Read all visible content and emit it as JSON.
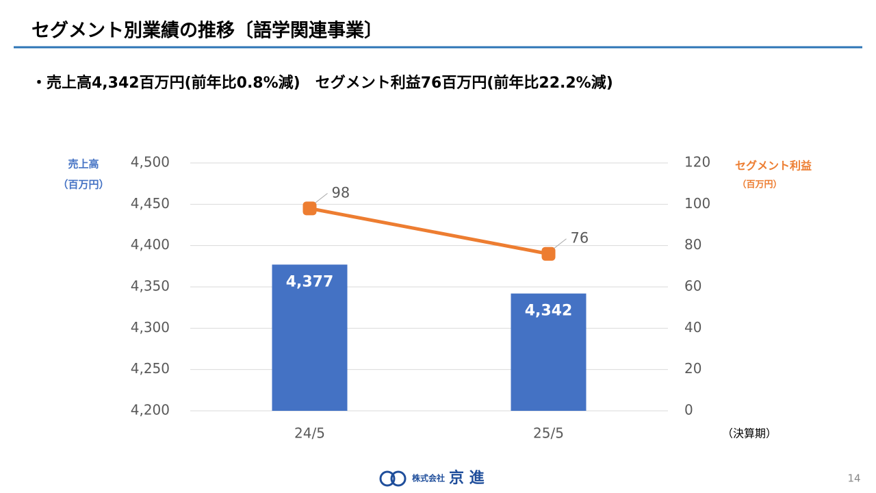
{
  "header": {
    "title": "セグメント別業績の推移〔語学関連事業〕",
    "subtitle": "・売上高4,342百万円(前年比0.8%減)　セグメント利益76百万円(前年比22.2%減)"
  },
  "chart_data": {
    "type": "bar",
    "categories": [
      "24/5",
      "25/5"
    ],
    "series": [
      {
        "name": "売上高",
        "type": "bar",
        "color": "#4472c4",
        "values": [
          4377,
          4342
        ],
        "value_labels": [
          "4,377",
          "4,342"
        ]
      },
      {
        "name": "セグメント利益",
        "type": "line",
        "axis": "y2",
        "color": "#ed7d31",
        "values": [
          98,
          76
        ]
      }
    ],
    "y_unit": "（百万円）",
    "y2_unit": "（百万円）",
    "x_label": "（決算期）",
    "ylim": [
      4200,
      4500
    ],
    "yticks": [
      {
        "value": 4200,
        "label": "4,200"
      },
      {
        "value": 4250,
        "label": "4,250"
      },
      {
        "value": 4300,
        "label": "4,300"
      },
      {
        "value": 4350,
        "label": "4,350"
      },
      {
        "value": 4400,
        "label": "4,400"
      },
      {
        "value": 4450,
        "label": "4,450"
      },
      {
        "value": 4500,
        "label": "4,500"
      }
    ],
    "y2lim": [
      0,
      120
    ],
    "y2ticks": [
      0,
      20,
      40,
      60,
      80,
      100,
      120
    ],
    "grid": true
  },
  "footer": {
    "company_prefix": "株式会社",
    "company": "京 進",
    "page": "14"
  }
}
